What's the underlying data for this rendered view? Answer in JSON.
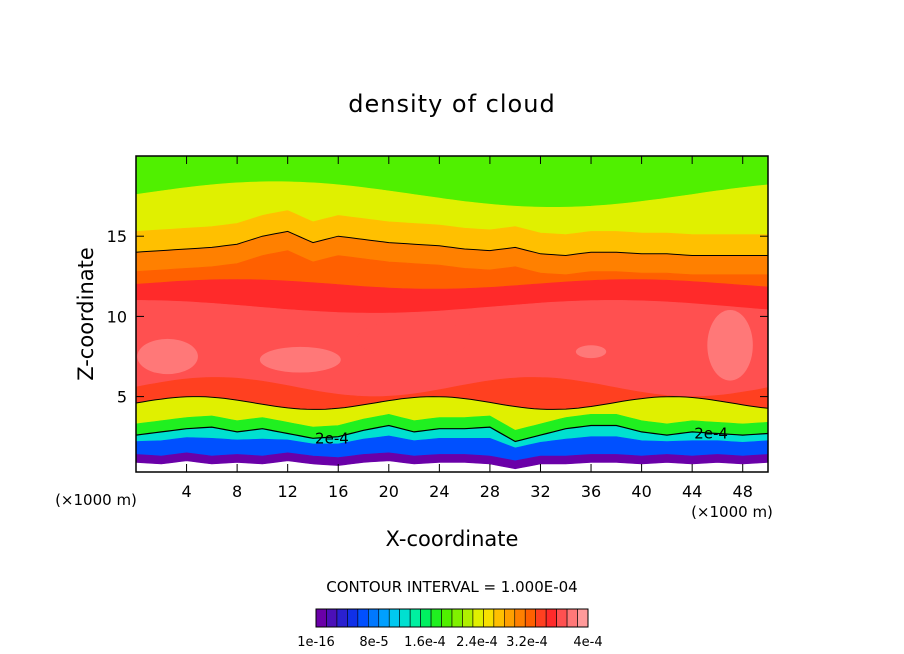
{
  "chart_data": {
    "type": "heatmap",
    "title": "density of cloud",
    "xlabel": "X-coordinate",
    "ylabel": "Z-coordinate",
    "x_unit_left": "(×1000 m)",
    "x_unit_right": "(×1000 m)",
    "xlim": [
      0,
      50
    ],
    "ylim": [
      0.3,
      20
    ],
    "xticks": [
      4,
      8,
      12,
      16,
      20,
      24,
      28,
      32,
      36,
      40,
      44,
      48
    ],
    "yticks": [
      5,
      10,
      15
    ],
    "contour_interval_text": "CONTOUR INTERVAL = 1.000E-04",
    "contour_labels": [
      {
        "text": "2e-4",
        "x": 15.5,
        "z": 2.4
      },
      {
        "text": "2e-4",
        "x": 45.5,
        "z": 2.7
      }
    ],
    "colorbar": {
      "levels": 26,
      "min": "1e-16",
      "max": "4e-4",
      "tick_labels": [
        "1e-16",
        "8e-5",
        "1.6e-4",
        "2.4e-4",
        "3.2e-4",
        "4e-4"
      ]
    },
    "colors": {
      "palette": [
        "#6a00a8",
        "#4b10b8",
        "#2a20d0",
        "#1030e8",
        "#0050ff",
        "#0078ff",
        "#00a0ff",
        "#00c8f0",
        "#00e0d0",
        "#00f0a0",
        "#00f060",
        "#20f020",
        "#50f000",
        "#80f000",
        "#b0f000",
        "#e0f000",
        "#f8e000",
        "#ffc000",
        "#ffa000",
        "#ff8000",
        "#ff6000",
        "#ff4020",
        "#ff2a2a",
        "#ff5050",
        "#ff7878",
        "#ff9a9a"
      ]
    },
    "profile": {
      "x": [
        0,
        2,
        4,
        6,
        8,
        10,
        12,
        14,
        16,
        18,
        20,
        22,
        24,
        26,
        28,
        30,
        32,
        34,
        36,
        38,
        40,
        42,
        44,
        46,
        48,
        50
      ],
      "bottom": [
        1.4,
        1.3,
        1.5,
        1.3,
        1.4,
        1.3,
        1.5,
        1.3,
        1.2,
        1.4,
        1.5,
        1.3,
        1.4,
        1.4,
        1.3,
        1.0,
        1.3,
        1.3,
        1.4,
        1.4,
        1.3,
        1.4,
        1.3,
        1.4,
        1.3,
        1.4
      ],
      "contour_2e4": [
        2.6,
        2.8,
        3.0,
        3.1,
        2.8,
        3.0,
        2.7,
        2.4,
        2.5,
        2.9,
        3.2,
        2.8,
        3.0,
        3.0,
        3.1,
        2.2,
        2.6,
        3.0,
        3.2,
        3.2,
        2.8,
        2.6,
        2.8,
        2.7,
        2.6,
        2.7
      ],
      "upper_contour": [
        14.0,
        14.1,
        14.2,
        14.3,
        14.5,
        15.0,
        15.3,
        14.6,
        15.0,
        14.8,
        14.6,
        14.5,
        14.4,
        14.2,
        14.1,
        14.3,
        13.9,
        13.8,
        14.0,
        14.0,
        13.9,
        13.9,
        13.8,
        13.8,
        13.8,
        13.8
      ]
    }
  }
}
